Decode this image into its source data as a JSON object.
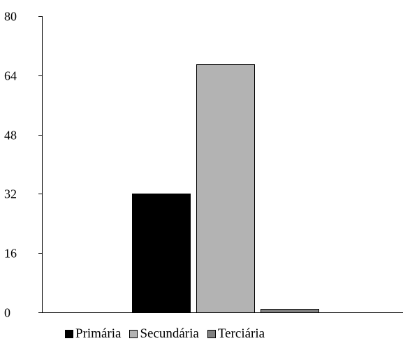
{
  "chart_data": {
    "type": "bar",
    "categories": [
      "Primária",
      "Secundária",
      "Terciária"
    ],
    "values": [
      32,
      67,
      1
    ],
    "colors": [
      "#000000",
      "#b3b3b3",
      "#808080"
    ],
    "yticks": [
      "0",
      "16",
      "32",
      "48",
      "64",
      "80"
    ],
    "ylim": [
      0,
      80
    ],
    "title": "",
    "xlabel": "",
    "ylabel": "",
    "grid": false,
    "legend": {
      "position": "bottom",
      "entries": [
        {
          "label": "Primária",
          "color": "#000000"
        },
        {
          "label": "Secundária",
          "color": "#b3b3b3"
        },
        {
          "label": "Terciária",
          "color": "#808080"
        }
      ]
    }
  }
}
